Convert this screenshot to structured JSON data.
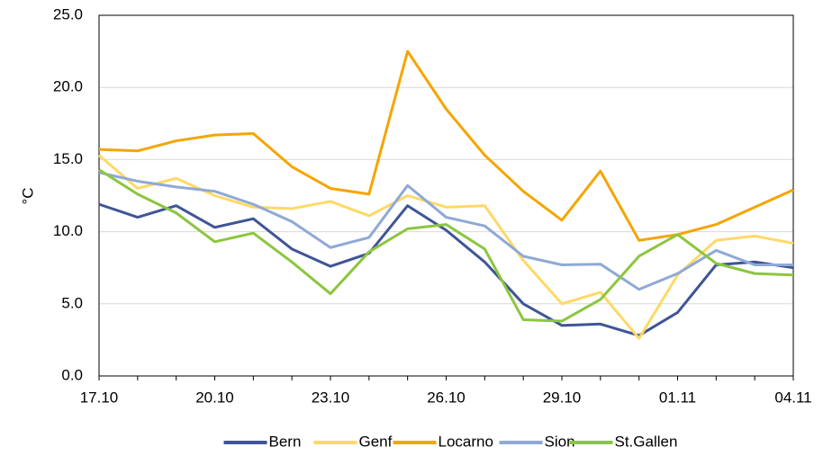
{
  "chart_data": {
    "type": "line",
    "y_label": "°C",
    "categories": [
      "17.10",
      null,
      null,
      "20.10",
      null,
      null,
      "23.10",
      null,
      null,
      "26.10",
      null,
      null,
      "29.10",
      null,
      null,
      "01.11",
      null,
      null,
      "04.11"
    ],
    "series": [
      {
        "name": "Bern",
        "color": "#3f5597",
        "values": [
          11.9,
          11.0,
          11.8,
          10.3,
          10.9,
          8.8,
          7.6,
          8.5,
          11.8,
          10.1,
          7.9,
          5.0,
          3.5,
          3.6,
          2.8,
          4.4,
          7.7,
          7.9,
          7.5
        ]
      },
      {
        "name": "Genf",
        "color": "#ffd966",
        "values": [
          15.3,
          13.0,
          13.7,
          12.5,
          11.7,
          11.6,
          12.1,
          11.1,
          12.5,
          11.7,
          11.8,
          8.0,
          5.0,
          5.8,
          2.6,
          7.0,
          9.4,
          9.7,
          9.2
        ]
      },
      {
        "name": "Locarno",
        "color": "#f5a500",
        "values": [
          15.7,
          15.6,
          16.3,
          16.7,
          16.8,
          14.5,
          13.0,
          12.6,
          22.5,
          18.5,
          15.3,
          12.8,
          10.8,
          14.2,
          9.4,
          9.8,
          10.5,
          11.7,
          12.9
        ]
      },
      {
        "name": "Sion",
        "color": "#8fa9d6",
        "values": [
          14.1,
          13.5,
          13.1,
          12.8,
          11.9,
          10.7,
          8.9,
          9.6,
          13.2,
          11.0,
          10.4,
          8.3,
          7.7,
          7.75,
          6.0,
          7.1,
          8.7,
          7.7,
          7.7
        ]
      },
      {
        "name": "St.Gallen",
        "color": "#8cc63f",
        "values": [
          14.3,
          12.6,
          11.3,
          9.3,
          9.9,
          7.9,
          5.7,
          8.6,
          10.2,
          10.5,
          8.8,
          3.9,
          3.8,
          5.3,
          8.3,
          9.8,
          7.8,
          7.1,
          7.0
        ]
      }
    ],
    "ylim": [
      0,
      25
    ],
    "yticks": [
      {
        "value": 0,
        "label": "0.0"
      },
      {
        "value": 5,
        "label": "5.0"
      },
      {
        "value": 10,
        "label": "10.0"
      },
      {
        "value": 15,
        "label": "15.0"
      },
      {
        "value": 20,
        "label": "20.0"
      },
      {
        "value": 25,
        "label": "25.0"
      }
    ],
    "grid": true
  }
}
